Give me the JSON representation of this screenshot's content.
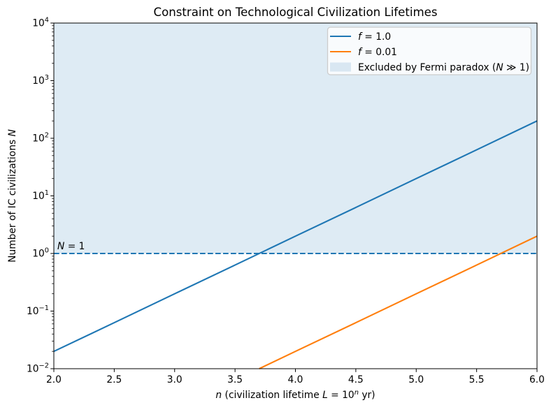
{
  "chart_data": {
    "type": "line",
    "title": "Constraint on Technological Civilization Lifetimes",
    "xlabel": "n  (civilization lifetime L = 10ⁿ yr)",
    "ylabel": "Number of IC civilizations N",
    "xlabel_parts": [
      {
        "text": "n",
        "italic": true
      },
      {
        "text": "  (civilization lifetime "
      },
      {
        "text": "L",
        "italic": true
      },
      {
        "text": " = 10"
      },
      {
        "text": "n",
        "italic": true,
        "super": true
      },
      {
        "text": " yr)",
        "after_super": true
      }
    ],
    "ylabel_parts": [
      {
        "text": "Number of IC civilizations "
      },
      {
        "text": "N",
        "italic": true
      }
    ],
    "xlim": [
      2.0,
      6.0
    ],
    "ylim": [
      0.01,
      10000
    ],
    "y_scale": "log",
    "grid": false,
    "x_ticks": [
      "2.0",
      "2.5",
      "3.0",
      "3.5",
      "4.0",
      "4.5",
      "5.0",
      "5.5",
      "6.0"
    ],
    "x_tick_values": [
      2.0,
      2.5,
      3.0,
      3.5,
      4.0,
      4.5,
      5.0,
      5.5,
      6.0
    ],
    "y_tick_exponents": [
      -2,
      -1,
      0,
      1,
      2,
      3,
      4
    ],
    "y_tick_labels": [
      "10⁻²",
      "10⁻¹",
      "10⁰",
      "10¹",
      "10²",
      "10³",
      "10⁴"
    ],
    "series": [
      {
        "name": "f = 1.0",
        "color": "#1f77b4",
        "label_parts": [
          {
            "text": "f",
            "italic": true
          },
          {
            "text": " = 1.0"
          }
        ],
        "x": [
          2.0,
          2.5,
          3.0,
          3.5,
          4.0,
          4.5,
          5.0,
          5.5,
          6.0
        ],
        "y": [
          0.02,
          0.063,
          0.2,
          0.63,
          2.0,
          6.3,
          20,
          63,
          200
        ]
      },
      {
        "name": "f = 0.01",
        "color": "#ff7f0e",
        "label_parts": [
          {
            "text": "f",
            "italic": true
          },
          {
            "text": " = 0.01"
          }
        ],
        "x": [
          3.7,
          4.0,
          4.5,
          5.0,
          5.5,
          6.0
        ],
        "y": [
          0.01,
          0.02,
          0.063,
          0.2,
          0.63,
          2.0
        ]
      }
    ],
    "reference_line": {
      "value": 1,
      "color": "#1f77b4",
      "style": "dashed",
      "annotation": "N = 1",
      "annotation_parts": [
        {
          "text": "N",
          "italic": true
        },
        {
          "text": " = 1"
        }
      ]
    },
    "excluded_region": {
      "from": 1,
      "to": 10000,
      "color": "rgba(31,119,180,0.15)",
      "label": "Excluded by Fermi paradox (N ≫ 1)",
      "label_parts": [
        {
          "text": "Excluded by Fermi paradox ("
        },
        {
          "text": "N",
          "italic": true
        },
        {
          "text": " ≫ 1)"
        }
      ]
    },
    "legend": {
      "position": "upper right",
      "border_color": "#cccccc",
      "background": "#ffffff"
    }
  }
}
